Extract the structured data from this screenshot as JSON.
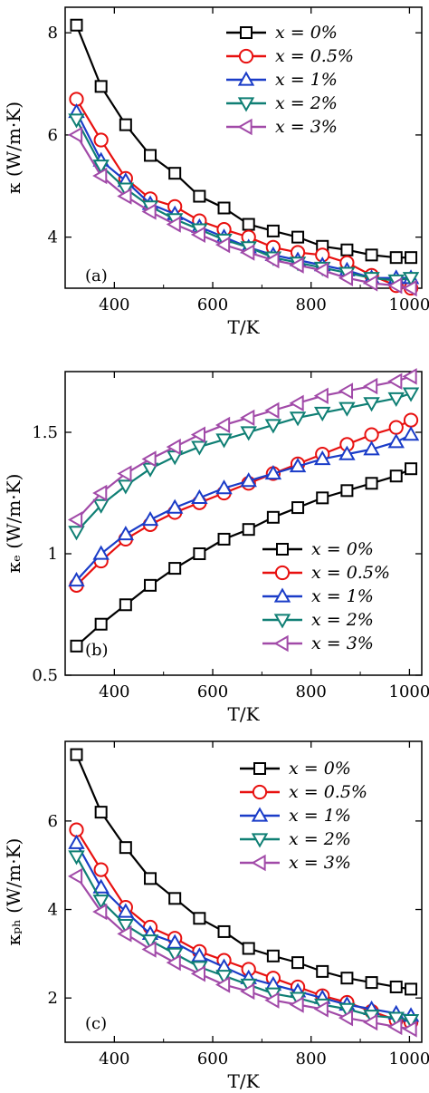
{
  "series_styles": [
    {
      "color": "#000000",
      "marker": "square"
    },
    {
      "color": "#e8100f",
      "marker": "circle"
    },
    {
      "color": "#1a3cc8",
      "marker": "triangle-up"
    },
    {
      "color": "#0f7f74",
      "marker": "triangle-down"
    },
    {
      "color": "#a14aa8",
      "marker": "triangle-left"
    }
  ],
  "chart_data": [
    {
      "type": "line",
      "panel_label": "(a)",
      "xlabel": "T/K",
      "ylabel": "κ (W/m·K)",
      "xlim": [
        300,
        1025
      ],
      "ylim": [
        3.0,
        8.5
      ],
      "xticks": [
        400,
        600,
        800,
        1000
      ],
      "yticks": [
        4,
        6,
        8
      ],
      "legend_position": "top-right",
      "x": [
        323,
        373,
        423,
        473,
        523,
        573,
        623,
        673,
        723,
        773,
        823,
        873,
        923,
        973,
        1003
      ],
      "series": [
        {
          "name": "x = 0%",
          "values": [
            8.15,
            6.95,
            6.2,
            5.6,
            5.25,
            4.8,
            4.57,
            4.25,
            4.12,
            4.0,
            3.82,
            3.75,
            3.65,
            3.6,
            3.6
          ]
        },
        {
          "name": "x = 0.5%",
          "values": [
            6.7,
            5.9,
            5.15,
            4.75,
            4.6,
            4.32,
            4.15,
            4.0,
            3.8,
            3.7,
            3.65,
            3.5,
            3.25,
            3.05,
            3.0
          ]
        },
        {
          "name": "x = 1%",
          "values": [
            6.45,
            5.5,
            5.1,
            4.65,
            4.45,
            4.2,
            4.0,
            3.8,
            3.65,
            3.55,
            3.45,
            3.35,
            3.2,
            3.2,
            3.2
          ]
        },
        {
          "name": "x = 2%",
          "values": [
            6.3,
            5.4,
            4.95,
            4.6,
            4.35,
            4.15,
            3.95,
            3.8,
            3.6,
            3.5,
            3.4,
            3.3,
            3.2,
            3.15,
            3.2
          ]
        },
        {
          "name": "x = 3%",
          "values": [
            6.0,
            5.2,
            4.8,
            4.5,
            4.25,
            4.05,
            3.85,
            3.7,
            3.55,
            3.45,
            3.35,
            3.2,
            3.1,
            3.05,
            3.0
          ]
        }
      ]
    },
    {
      "type": "line",
      "panel_label": "(b)",
      "xlabel": "T/K",
      "ylabel": "κₑ (W/m·K)",
      "xlim": [
        300,
        1025
      ],
      "ylim": [
        0.5,
        1.75
      ],
      "xticks": [
        400,
        600,
        800,
        1000
      ],
      "yticks": [
        0.5,
        1.0,
        1.5
      ],
      "legend_position": "bottom-right",
      "x": [
        323,
        373,
        423,
        473,
        523,
        573,
        623,
        673,
        723,
        773,
        823,
        873,
        923,
        973,
        1003
      ],
      "series": [
        {
          "name": "x = 0%",
          "values": [
            0.62,
            0.71,
            0.79,
            0.87,
            0.94,
            1.0,
            1.06,
            1.1,
            1.15,
            1.19,
            1.23,
            1.26,
            1.29,
            1.32,
            1.35
          ]
        },
        {
          "name": "x = 0.5%",
          "values": [
            0.87,
            0.97,
            1.06,
            1.12,
            1.17,
            1.21,
            1.25,
            1.29,
            1.33,
            1.37,
            1.41,
            1.45,
            1.49,
            1.52,
            1.55
          ]
        },
        {
          "name": "x = 1%",
          "values": [
            0.89,
            1.0,
            1.08,
            1.14,
            1.19,
            1.23,
            1.27,
            1.3,
            1.33,
            1.36,
            1.39,
            1.41,
            1.43,
            1.46,
            1.49
          ]
        },
        {
          "name": "x = 2%",
          "values": [
            1.09,
            1.2,
            1.28,
            1.35,
            1.4,
            1.44,
            1.47,
            1.5,
            1.53,
            1.56,
            1.58,
            1.6,
            1.62,
            1.64,
            1.66
          ]
        },
        {
          "name": "x = 3%",
          "values": [
            1.14,
            1.25,
            1.33,
            1.39,
            1.44,
            1.49,
            1.53,
            1.56,
            1.59,
            1.62,
            1.65,
            1.67,
            1.69,
            1.71,
            1.73
          ]
        }
      ]
    },
    {
      "type": "line",
      "panel_label": "(c)",
      "xlabel": "T/K",
      "ylabel": "κₚₕ (W/m·K)",
      "xlim": [
        300,
        1025
      ],
      "ylim": [
        1.0,
        7.8
      ],
      "xticks": [
        400,
        600,
        800,
        1000
      ],
      "yticks": [
        2,
        4,
        6
      ],
      "legend_position": "top-right",
      "x": [
        323,
        373,
        423,
        473,
        523,
        573,
        623,
        673,
        723,
        773,
        823,
        873,
        923,
        973,
        1003
      ],
      "series": [
        {
          "name": "x = 0%",
          "values": [
            7.5,
            6.2,
            5.4,
            4.7,
            4.25,
            3.8,
            3.5,
            3.12,
            2.95,
            2.8,
            2.6,
            2.45,
            2.35,
            2.25,
            2.2
          ]
        },
        {
          "name": "x = 0.5%",
          "values": [
            5.8,
            4.9,
            4.05,
            3.6,
            3.35,
            3.05,
            2.85,
            2.65,
            2.45,
            2.25,
            2.05,
            1.9,
            1.7,
            1.5,
            1.45
          ]
        },
        {
          "name": "x = 1%",
          "values": [
            5.5,
            4.5,
            3.95,
            3.45,
            3.25,
            2.95,
            2.7,
            2.45,
            2.3,
            2.15,
            2.0,
            1.85,
            1.75,
            1.65,
            1.6
          ]
        },
        {
          "name": "x = 2%",
          "values": [
            5.2,
            4.2,
            3.65,
            3.3,
            3.0,
            2.7,
            2.5,
            2.3,
            2.1,
            2.0,
            1.85,
            1.75,
            1.6,
            1.55,
            1.5
          ]
        },
        {
          "name": "x = 3%",
          "values": [
            4.75,
            3.95,
            3.45,
            3.1,
            2.8,
            2.55,
            2.3,
            2.15,
            1.95,
            1.85,
            1.75,
            1.55,
            1.45,
            1.35,
            1.3
          ]
        }
      ]
    }
  ]
}
